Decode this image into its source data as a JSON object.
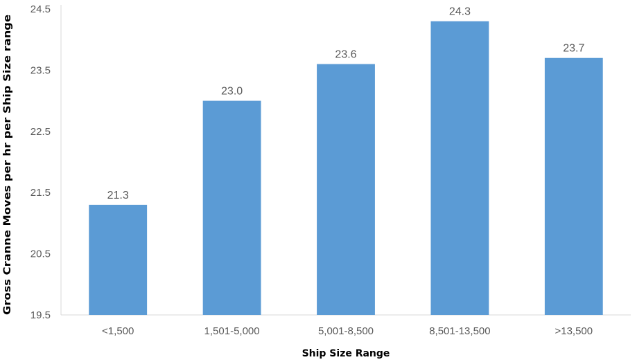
{
  "chart_data": {
    "type": "bar",
    "categories": [
      "<1,500",
      "1,501-5,000",
      "5,001-8,500",
      "8,501-13,500",
      ">13,500"
    ],
    "values": [
      21.3,
      23.0,
      23.6,
      24.3,
      23.7
    ],
    "value_labels": [
      "21.3",
      "23.0",
      "23.6",
      "24.3",
      "23.7"
    ],
    "xlabel": "Ship Size Range",
    "ylabel": "Gross Cranne Moves per hr per Ship Size range",
    "ylim": [
      19.5,
      24.5
    ],
    "yticks": [
      19.5,
      20.5,
      21.5,
      22.5,
      23.5,
      24.5
    ],
    "ytick_labels": [
      "19.5",
      "20.5",
      "21.5",
      "22.5",
      "23.5",
      "24.5"
    ],
    "bar_color": "#5B9BD5",
    "grid": false,
    "legend": "none"
  }
}
